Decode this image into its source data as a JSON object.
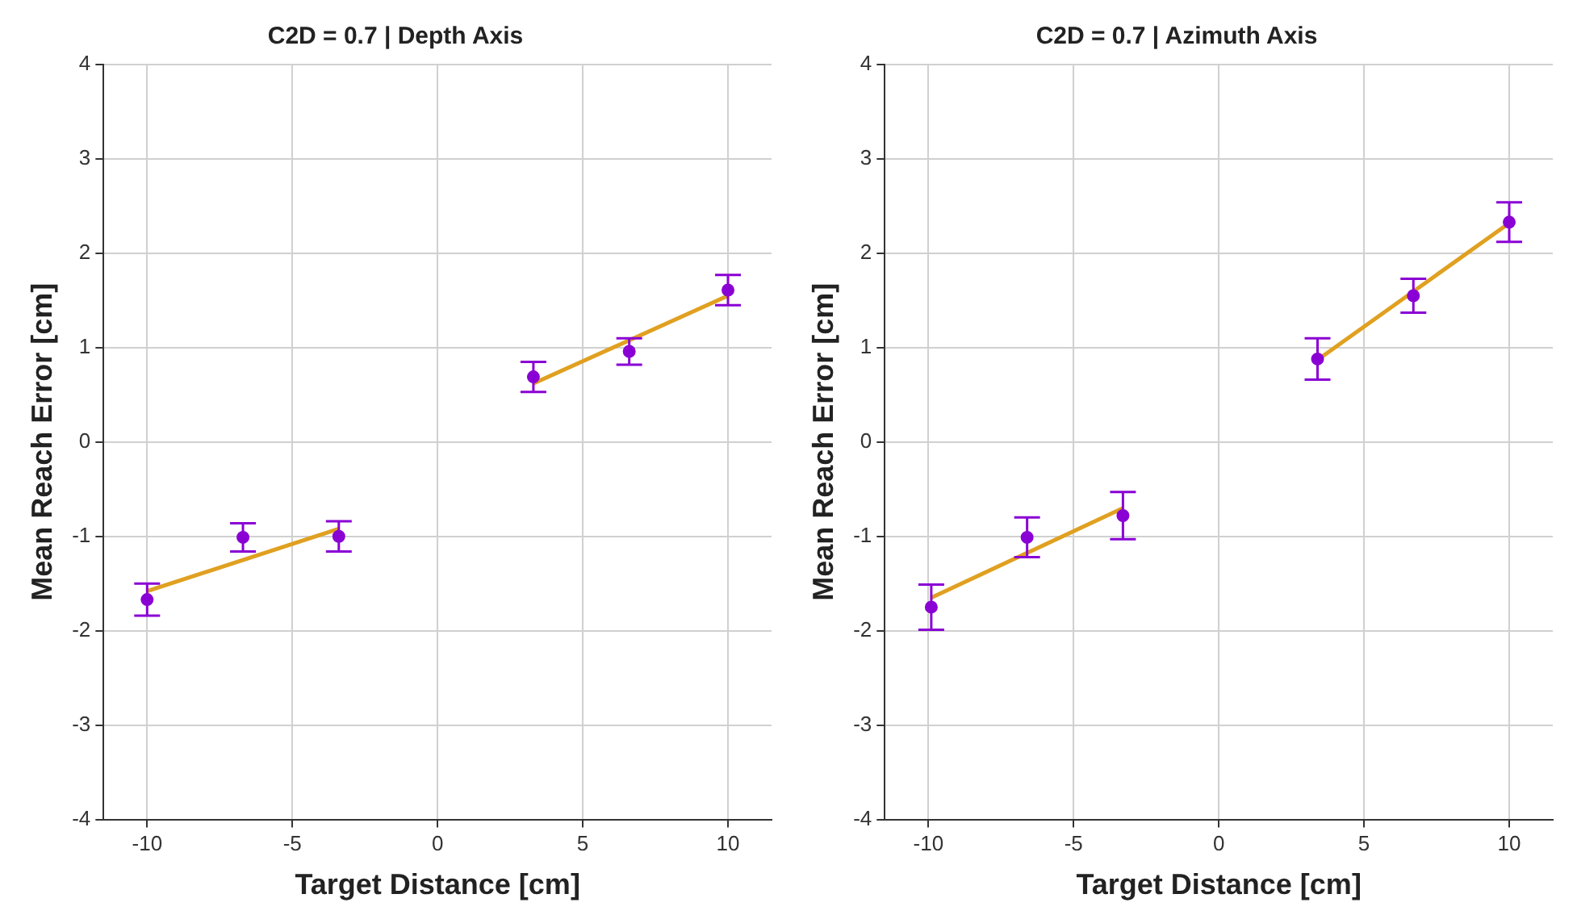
{
  "chart_data": [
    {
      "type": "scatter",
      "title": "C2D = 0.7 | Depth Axis",
      "xlabel": "Target Distance [cm]",
      "ylabel": "Mean Reach Error [cm]",
      "xlim": [
        -11.5,
        11.5
      ],
      "xticks": [
        -10,
        -5,
        0,
        5,
        10
      ],
      "ylim": [
        -4,
        4
      ],
      "yticks": [
        -4,
        -3,
        -2,
        -1,
        0,
        1,
        2,
        3,
        4
      ],
      "grid": true,
      "legend": false,
      "series": [
        {
          "type": "scatter",
          "marker": "circle",
          "color": "#8a00d4",
          "x": [
            -10,
            -6.7,
            -3.4,
            3.3,
            6.6,
            10
          ],
          "values": [
            -1.67,
            -1.01,
            -1.0,
            0.69,
            0.96,
            1.61
          ],
          "errors": [
            0.17,
            0.15,
            0.16,
            0.16,
            0.14,
            0.16
          ]
        },
        {
          "type": "line",
          "color": "#e0a020",
          "x": [
            -10,
            -3.4
          ],
          "values": [
            -1.58,
            -0.92
          ]
        },
        {
          "type": "line",
          "color": "#e0a020",
          "x": [
            3.3,
            10
          ],
          "values": [
            0.62,
            1.55
          ]
        }
      ]
    },
    {
      "type": "scatter",
      "title": "C2D = 0.7 | Azimuth Axis",
      "xlabel": "Target Distance [cm]",
      "ylabel": "Mean Reach Error [cm]",
      "xlim": [
        -11.5,
        11.5
      ],
      "xticks": [
        -10,
        -5,
        0,
        5,
        10
      ],
      "ylim": [
        -4,
        4
      ],
      "yticks": [
        -4,
        -3,
        -2,
        -1,
        0,
        1,
        2,
        3,
        4
      ],
      "grid": true,
      "legend": false,
      "series": [
        {
          "type": "scatter",
          "marker": "circle",
          "color": "#8a00d4",
          "x": [
            -9.9,
            -6.6,
            -3.3,
            3.4,
            6.7,
            10
          ],
          "values": [
            -1.75,
            -1.01,
            -0.78,
            0.88,
            1.55,
            2.33
          ],
          "errors": [
            0.24,
            0.21,
            0.25,
            0.22,
            0.18,
            0.21
          ]
        },
        {
          "type": "line",
          "color": "#e0a020",
          "x": [
            -9.9,
            -3.3
          ],
          "values": [
            -1.65,
            -0.7
          ]
        },
        {
          "type": "line",
          "color": "#e0a020",
          "x": [
            3.4,
            10
          ],
          "values": [
            0.87,
            2.32
          ]
        }
      ]
    }
  ]
}
